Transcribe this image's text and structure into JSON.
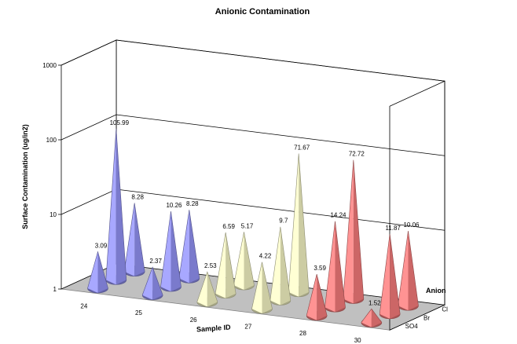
{
  "chart_data": {
    "type": "3d-cone",
    "title": "Anionic Contamination",
    "xlabel": "Sample ID",
    "ylabel": "Surface Contamination (ug/in2)",
    "zlabel": "Anion",
    "y_scale": "log",
    "ylim": [
      1,
      1000
    ],
    "y_ticks": [
      "1",
      "10",
      "100",
      "1000"
    ],
    "categories": [
      "24",
      "25",
      "26",
      "27",
      "28",
      "30"
    ],
    "series": [
      {
        "name": "Cl",
        "values": [
          8.28,
          8.28,
          5.17,
          71.67,
          72.72,
          10.06
        ]
      },
      {
        "name": "Br",
        "values": [
          105.99,
          10.26,
          6.59,
          9.7,
          14.24,
          11.87
        ]
      },
      {
        "name": "SO4",
        "values": [
          3.09,
          2.37,
          2.53,
          4.22,
          3.59,
          1.52
        ]
      }
    ],
    "point_labels": [
      [
        "8.28",
        "8.28",
        "5.17",
        "71.67",
        "72.72",
        "10.06"
      ],
      [
        "105.99",
        "10.26",
        "6.59",
        "9.7",
        "14.24",
        "11.87"
      ],
      [
        "3.09",
        "2.37",
        "2.53",
        "4.22",
        "3.59",
        "1.52"
      ]
    ],
    "depth_labels": [
      "Cl",
      "Br",
      "SO4"
    ],
    "category_colors": [
      "#9999ff",
      "#9999ff",
      "#ffffcc",
      "#ffffcc",
      "#ff8080",
      "#ff8080"
    ],
    "grid": true,
    "legend": "none"
  }
}
